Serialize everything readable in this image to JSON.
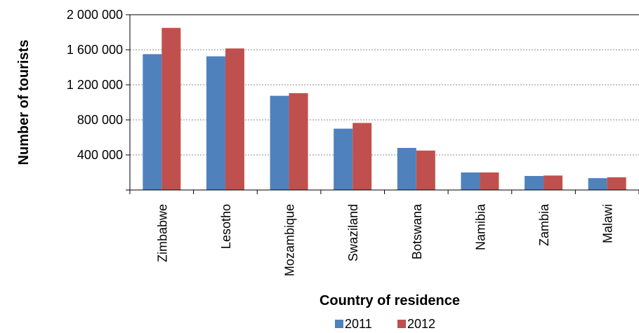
{
  "chart_data": {
    "type": "bar",
    "title": "",
    "xlabel": "Country of residence",
    "ylabel": "Number of tourists",
    "categories": [
      "Zimbabwe",
      "Lesotho",
      "Mozambique",
      "Swaziland",
      "Botswana",
      "Namibia",
      "Zambia",
      "Malawi"
    ],
    "series": [
      {
        "name": "2011",
        "color": "#4F81BD",
        "values": [
          1550000,
          1525000,
          1075000,
          700000,
          480000,
          200000,
          160000,
          135000
        ]
      },
      {
        "name": "2012",
        "color": "#C0504D",
        "values": [
          1850000,
          1615000,
          1105000,
          765000,
          450000,
          200000,
          165000,
          145000
        ]
      }
    ],
    "ylim": [
      0,
      2000000
    ],
    "y_ticks": [
      {
        "value": 400000,
        "label": "400 000"
      },
      {
        "value": 800000,
        "label": "800 000"
      },
      {
        "value": 1200000,
        "label": "1 200 000"
      },
      {
        "value": 1600000,
        "label": "1 600 000"
      },
      {
        "value": 2000000,
        "label": "2 000 000"
      }
    ],
    "grid": true,
    "legend_position": "bottom"
  }
}
